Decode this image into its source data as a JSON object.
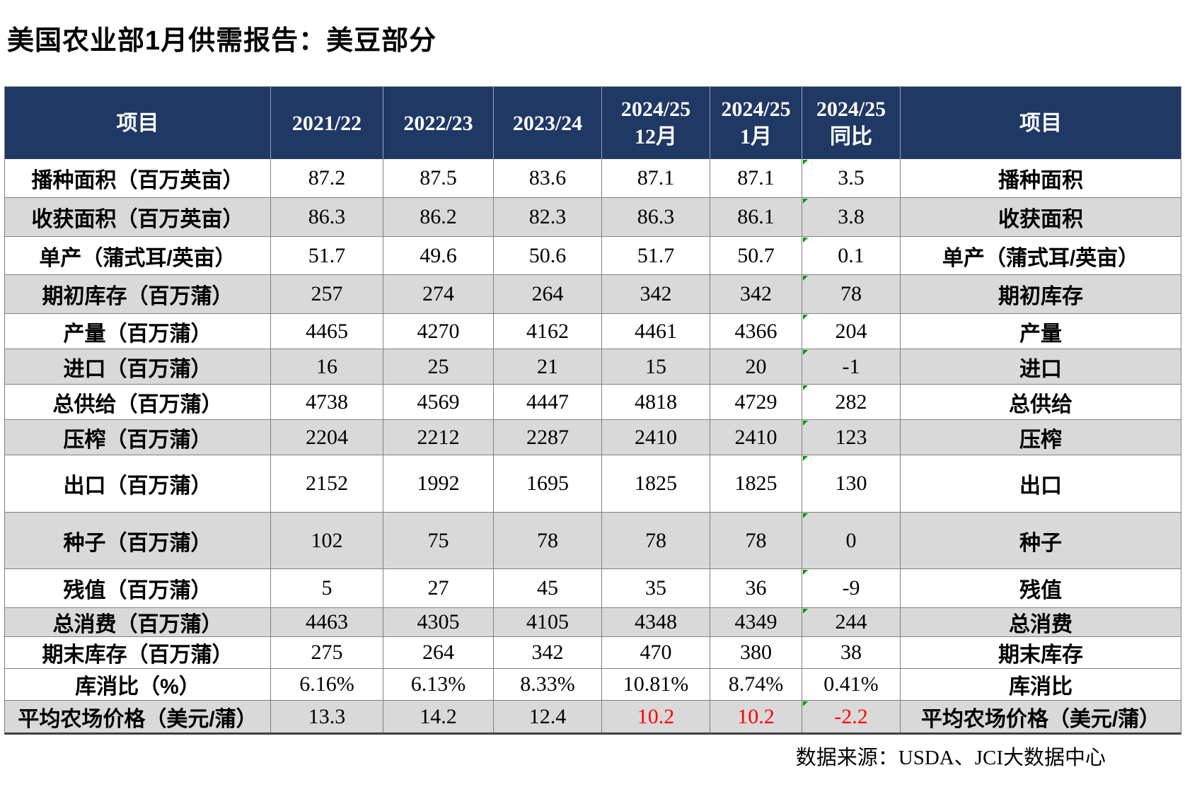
{
  "title": "美国农业部1月供需报告：美豆部分",
  "footer": "数据来源：USDA、JCI大数据中心",
  "colors": {
    "header_bg": "#1f3864",
    "row_shade": "#d9d9d9",
    "grid_line": "#808080",
    "negative_red": "#ff0000",
    "flag_green": "#009900"
  },
  "table": {
    "headers": [
      {
        "lines": [
          "项目"
        ]
      },
      {
        "lines": [
          "2021/22"
        ]
      },
      {
        "lines": [
          "2022/23"
        ]
      },
      {
        "lines": [
          "2023/24"
        ]
      },
      {
        "lines": [
          "2024/25",
          "12月"
        ]
      },
      {
        "lines": [
          "2024/25",
          "1月"
        ]
      },
      {
        "lines": [
          "2024/25",
          "同比"
        ]
      },
      {
        "lines": [
          "项目"
        ]
      }
    ],
    "rows": [
      {
        "label": "播种面积（百万英亩）",
        "values": [
          "87.2",
          "87.5",
          "83.6",
          "87.1",
          "87.1",
          "3.5"
        ],
        "label_right": "播种面积",
        "shade": false,
        "marker": true,
        "red_cols": []
      },
      {
        "label": "收获面积（百万英亩）",
        "values": [
          "86.3",
          "86.2",
          "82.3",
          "86.3",
          "86.1",
          "3.8"
        ],
        "label_right": "收获面积",
        "shade": true,
        "marker": true,
        "red_cols": []
      },
      {
        "label": "单产（蒲式耳/英亩）",
        "values": [
          "51.7",
          "49.6",
          "50.6",
          "51.7",
          "50.7",
          "0.1"
        ],
        "label_right": "单产（蒲式耳/英亩）",
        "shade": false,
        "marker": true,
        "red_cols": []
      },
      {
        "label": "期初库存（百万蒲）",
        "values": [
          "257",
          "274",
          "264",
          "342",
          "342",
          "78"
        ],
        "label_right": "期初库存",
        "shade": true,
        "marker": true,
        "red_cols": []
      },
      {
        "label": "产量（百万蒲）",
        "values": [
          "4465",
          "4270",
          "4162",
          "4461",
          "4366",
          "204"
        ],
        "label_right": "产量",
        "shade": false,
        "marker": true,
        "red_cols": []
      },
      {
        "label": "进口（百万蒲）",
        "values": [
          "16",
          "25",
          "21",
          "15",
          "20",
          "-1"
        ],
        "label_right": "进口",
        "shade": true,
        "marker": true,
        "red_cols": []
      },
      {
        "label": "总供给（百万蒲）",
        "values": [
          "4738",
          "4569",
          "4447",
          "4818",
          "4729",
          "282"
        ],
        "label_right": "总供给",
        "shade": false,
        "marker": true,
        "red_cols": []
      },
      {
        "label": "压榨（百万蒲）",
        "values": [
          "2204",
          "2212",
          "2287",
          "2410",
          "2410",
          "123"
        ],
        "label_right": "压榨",
        "shade": true,
        "marker": true,
        "red_cols": []
      },
      {
        "label": "出口（百万蒲）",
        "values": [
          "2152",
          "1992",
          "1695",
          "1825",
          "1825",
          "130"
        ],
        "label_right": "出口",
        "shade": false,
        "marker": true,
        "red_cols": []
      },
      {
        "label": "种子（百万蒲）",
        "values": [
          "102",
          "75",
          "78",
          "78",
          "78",
          "0"
        ],
        "label_right": "种子",
        "shade": true,
        "marker": true,
        "red_cols": []
      },
      {
        "label": "残值（百万蒲）",
        "values": [
          "5",
          "27",
          "45",
          "35",
          "36",
          "-9"
        ],
        "label_right": "残值",
        "shade": false,
        "marker": true,
        "red_cols": []
      },
      {
        "label": "总消费（百万蒲）",
        "values": [
          "4463",
          "4305",
          "4105",
          "4348",
          "4349",
          "244"
        ],
        "label_right": "总消费",
        "shade": true,
        "marker": true,
        "red_cols": []
      },
      {
        "label": "期末库存（百万蒲）",
        "values": [
          "275",
          "264",
          "342",
          "470",
          "380",
          "38"
        ],
        "label_right": "期末库存",
        "shade": false,
        "marker": false,
        "red_cols": []
      },
      {
        "label": "库消比（%）",
        "values": [
          "6.16%",
          "6.13%",
          "8.33%",
          "10.81%",
          "8.74%",
          "0.41%"
        ],
        "label_right": "库消比",
        "shade": false,
        "marker": false,
        "red_cols": []
      },
      {
        "label": "平均农场价格（美元/蒲）",
        "values": [
          "13.3",
          "14.2",
          "12.4",
          "10.2",
          "10.2",
          "-2.2"
        ],
        "label_right": "平均农场价格（美元/蒲）",
        "shade": true,
        "marker": true,
        "red_cols": [
          3,
          4,
          5
        ]
      }
    ]
  }
}
